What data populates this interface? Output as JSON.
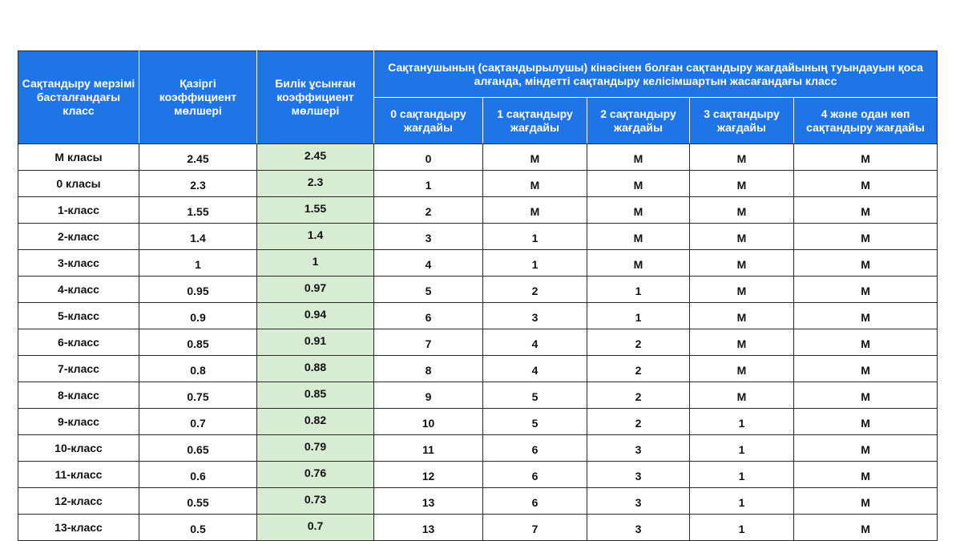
{
  "headers": {
    "start_class": "Сақтандыру мерзімі басталғандағы класс",
    "current_coef": "Қазіргі коэффициент мөлшері",
    "proposed_coef": "Билік ұсынған коэффициент мөлшері",
    "group": "Сақтанушының (сақтандырылушы) кінәсінен болған сақтандыру жағдайының туындауын қоса алғанда, міндетті сақтандыру келісімшартын жасағандағы класс",
    "sub": [
      "0 сақтандыру жағдайы",
      "1 сақтандыру жағдайы",
      "2 сақтандыру жағдайы",
      "3 сақтандыру жағдайы",
      "4 және одан көп сақтандыру жағдайы"
    ]
  },
  "rows": [
    {
      "cls": "М класы",
      "cur": "2.45",
      "prop": "2.45",
      "c0": "0",
      "c1": "М",
      "c2": "М",
      "c3": "М",
      "c4": "М"
    },
    {
      "cls": "0 класы",
      "cur": "2.3",
      "prop": "2.3",
      "c0": "1",
      "c1": "М",
      "c2": "М",
      "c3": "М",
      "c4": "М"
    },
    {
      "cls": "1-класс",
      "cur": "1.55",
      "prop": "1.55",
      "c0": "2",
      "c1": "М",
      "c2": "М",
      "c3": "М",
      "c4": "М"
    },
    {
      "cls": "2-класс",
      "cur": "1.4",
      "prop": "1.4",
      "c0": "3",
      "c1": "1",
      "c2": "М",
      "c3": "М",
      "c4": "М"
    },
    {
      "cls": "3-класс",
      "cur": "1",
      "prop": "1",
      "c0": "4",
      "c1": "1",
      "c2": "М",
      "c3": "М",
      "c4": "М"
    },
    {
      "cls": "4-класс",
      "cur": "0.95",
      "prop": "0.97",
      "c0": "5",
      "c1": "2",
      "c2": "1",
      "c3": "М",
      "c4": "М"
    },
    {
      "cls": "5-класс",
      "cur": "0.9",
      "prop": "0.94",
      "c0": "6",
      "c1": "3",
      "c2": "1",
      "c3": "М",
      "c4": "М"
    },
    {
      "cls": "6-класс",
      "cur": "0.85",
      "prop": "0.91",
      "c0": "7",
      "c1": "4",
      "c2": "2",
      "c3": "М",
      "c4": "М"
    },
    {
      "cls": "7-класс",
      "cur": "0.8",
      "prop": "0.88",
      "c0": "8",
      "c1": "4",
      "c2": "2",
      "c3": "М",
      "c4": "М"
    },
    {
      "cls": "8-класс",
      "cur": "0.75",
      "prop": "0.85",
      "c0": "9",
      "c1": "5",
      "c2": "2",
      "c3": "М",
      "c4": "М"
    },
    {
      "cls": "9-класс",
      "cur": "0.7",
      "prop": "0.82",
      "c0": "10",
      "c1": "5",
      "c2": "2",
      "c3": "1",
      "c4": "М"
    },
    {
      "cls": "10-класс",
      "cur": "0.65",
      "prop": "0.79",
      "c0": "11",
      "c1": "6",
      "c2": "3",
      "c3": "1",
      "c4": "М"
    },
    {
      "cls": "11-класс",
      "cur": "0.6",
      "prop": "0.76",
      "c0": "12",
      "c1": "6",
      "c2": "3",
      "c3": "1",
      "c4": "М"
    },
    {
      "cls": "12-класс",
      "cur": "0.55",
      "prop": "0.73",
      "c0": "13",
      "c1": "6",
      "c2": "3",
      "c3": "1",
      "c4": "М"
    },
    {
      "cls": "13-класс",
      "cur": "0.5",
      "prop": "0.7",
      "c0": "13",
      "c1": "7",
      "c2": "3",
      "c3": "1",
      "c4": "М"
    }
  ],
  "colors": {
    "header_bg": "#1f75e6",
    "header_text": "#ffffff",
    "proposed_bg": "#d8ebd3"
  }
}
